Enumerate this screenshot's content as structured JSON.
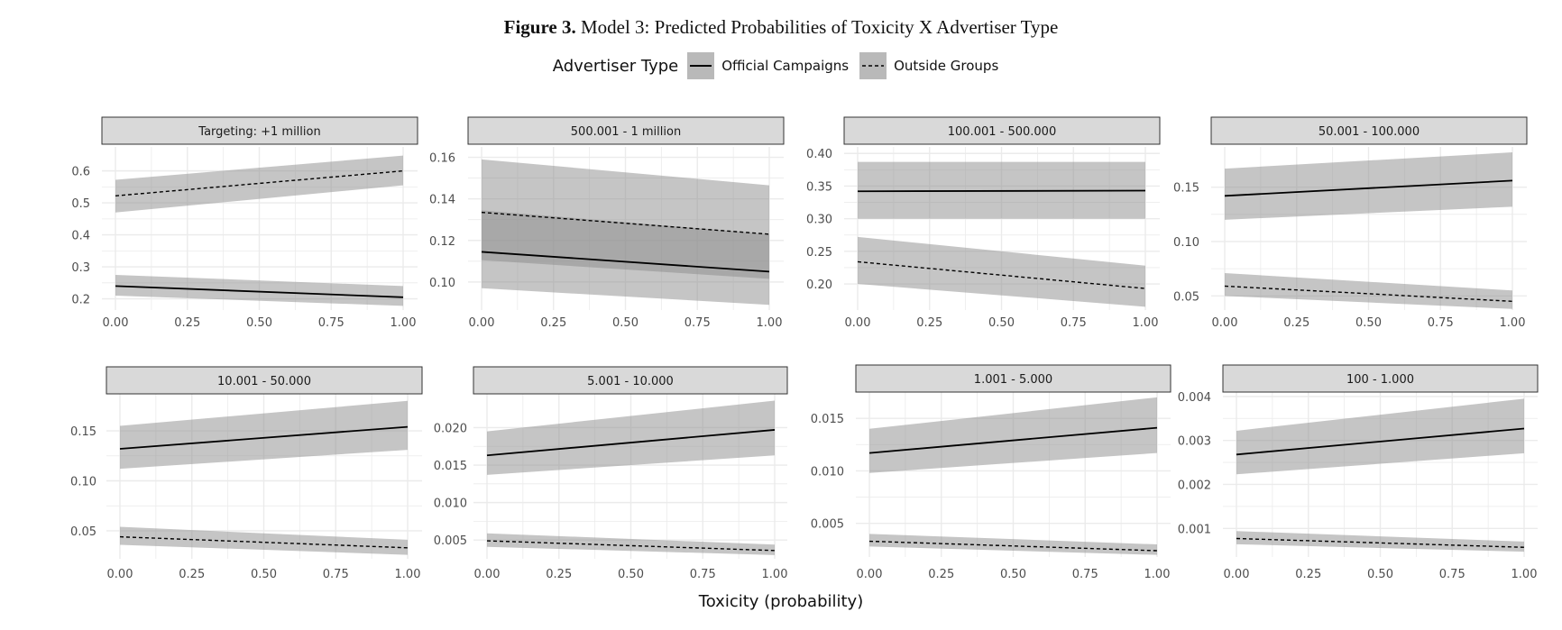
{
  "figure": {
    "label": "Figure 3.",
    "caption": "Model 3: Predicted Probabilities of Toxicity X Advertiser Type",
    "xlabel": "Toxicity (probability)"
  },
  "legend": {
    "title": "Advertiser Type",
    "entries": [
      "Official Campaigns",
      "Outside Groups"
    ]
  },
  "colors": {
    "ribbon": "#8c8c8c",
    "strip": "#d9d9d9",
    "grid": "#ebebeb",
    "line": "#000000"
  },
  "chart_data": [
    {
      "type": "line",
      "title": "Targeting: +1 million",
      "xlim": [
        0,
        1
      ],
      "yticks": [
        0.2,
        0.3,
        0.4,
        0.5,
        0.6
      ],
      "yticklabels": [
        "0.2",
        "0.3",
        "0.4",
        "0.5",
        "0.6"
      ],
      "ylim": [
        0.165,
        0.675
      ],
      "xticklabels": [
        "0.00",
        "0.25",
        "0.50",
        "0.75",
        "1.00"
      ],
      "series": [
        {
          "name": "Official Campaigns",
          "x": [
            0,
            1
          ],
          "y": [
            0.24,
            0.205
          ],
          "lo": [
            0.21,
            0.178
          ],
          "hi": [
            0.275,
            0.24
          ]
        },
        {
          "name": "Outside Groups",
          "x": [
            0,
            1
          ],
          "y": [
            0.522,
            0.6
          ],
          "lo": [
            0.47,
            0.555
          ],
          "hi": [
            0.572,
            0.648
          ]
        }
      ]
    },
    {
      "type": "line",
      "title": "500.001 - 1 million",
      "xlim": [
        0,
        1
      ],
      "yticks": [
        0.1,
        0.12,
        0.14,
        0.16
      ],
      "yticklabels": [
        "0.10",
        "0.12",
        "0.14",
        "0.16"
      ],
      "ylim": [
        0.0865,
        0.165
      ],
      "xticklabels": [
        "0.00",
        "0.25",
        "0.50",
        "0.75",
        "1.00"
      ],
      "series": [
        {
          "name": "Official Campaigns",
          "x": [
            0,
            1
          ],
          "y": [
            0.1145,
            0.105
          ],
          "lo": [
            0.097,
            0.089
          ],
          "hi": [
            0.1345,
            0.123
          ]
        },
        {
          "name": "Outside Groups",
          "x": [
            0,
            1
          ],
          "y": [
            0.1335,
            0.123
          ],
          "lo": [
            0.1105,
            0.1015
          ],
          "hi": [
            0.159,
            0.1465
          ]
        }
      ]
    },
    {
      "type": "line",
      "title": "100.001 - 500.000",
      "xlim": [
        0,
        1
      ],
      "yticks": [
        0.2,
        0.25,
        0.3,
        0.35,
        0.4
      ],
      "yticklabels": [
        "0.20",
        "0.25",
        "0.30",
        "0.35",
        "0.40"
      ],
      "ylim": [
        0.16,
        0.41
      ],
      "xticklabels": [
        "0.00",
        "0.25",
        "0.50",
        "0.75",
        "1.00"
      ],
      "series": [
        {
          "name": "Official Campaigns",
          "x": [
            0,
            1
          ],
          "y": [
            0.342,
            0.343
          ],
          "lo": [
            0.3,
            0.3
          ],
          "hi": [
            0.387,
            0.387
          ]
        },
        {
          "name": "Outside Groups",
          "x": [
            0,
            1
          ],
          "y": [
            0.234,
            0.193
          ],
          "lo": [
            0.2,
            0.165
          ],
          "hi": [
            0.272,
            0.228
          ]
        }
      ]
    },
    {
      "type": "line",
      "title": "50.001 - 100.000",
      "xlim": [
        0,
        1
      ],
      "yticks": [
        0.05,
        0.1,
        0.15
      ],
      "yticklabels": [
        "0.05",
        "0.10",
        "0.15"
      ],
      "ylim": [
        0.037,
        0.187
      ],
      "xticklabels": [
        "0.00",
        "0.25",
        "0.50",
        "0.75",
        "1.00"
      ],
      "series": [
        {
          "name": "Official Campaigns",
          "x": [
            0,
            1
          ],
          "y": [
            0.142,
            0.156
          ],
          "lo": [
            0.12,
            0.132
          ],
          "hi": [
            0.167,
            0.182
          ]
        },
        {
          "name": "Outside Groups",
          "x": [
            0,
            1
          ],
          "y": [
            0.059,
            0.045
          ],
          "lo": [
            0.05,
            0.038
          ],
          "hi": [
            0.071,
            0.055
          ]
        }
      ]
    },
    {
      "type": "line",
      "title": "10.001 - 50.000",
      "xlim": [
        0,
        1
      ],
      "yticks": [
        0.05,
        0.1,
        0.15
      ],
      "yticklabels": [
        "0.05",
        "0.10",
        "0.15"
      ],
      "ylim": [
        0.022,
        0.187
      ],
      "xticklabels": [
        "0.00",
        "0.25",
        "0.50",
        "0.75",
        "1.00"
      ],
      "series": [
        {
          "name": "Official Campaigns",
          "x": [
            0,
            1
          ],
          "y": [
            0.132,
            0.154
          ],
          "lo": [
            0.112,
            0.131
          ],
          "hi": [
            0.155,
            0.18
          ]
        },
        {
          "name": "Outside Groups",
          "x": [
            0,
            1
          ],
          "y": [
            0.044,
            0.033
          ],
          "lo": [
            0.036,
            0.026
          ],
          "hi": [
            0.054,
            0.041
          ]
        }
      ]
    },
    {
      "type": "line",
      "title": "5.001 - 10.000",
      "xlim": [
        0,
        1
      ],
      "yticks": [
        0.005,
        0.01,
        0.015,
        0.02
      ],
      "yticklabels": [
        "0.005",
        "0.010",
        "0.015",
        "0.020"
      ],
      "ylim": [
        0.0025,
        0.0245
      ],
      "xticklabels": [
        "0.00",
        "0.25",
        "0.50",
        "0.75",
        "1.00"
      ],
      "series": [
        {
          "name": "Official Campaigns",
          "x": [
            0,
            1
          ],
          "y": [
            0.0163,
            0.0197
          ],
          "lo": [
            0.0137,
            0.0163
          ],
          "hi": [
            0.0195,
            0.0236
          ]
        },
        {
          "name": "Outside Groups",
          "x": [
            0,
            1
          ],
          "y": [
            0.0049,
            0.0036
          ],
          "lo": [
            0.0041,
            0.003
          ],
          "hi": [
            0.0059,
            0.0044
          ]
        }
      ]
    },
    {
      "type": "line",
      "title": "1.001 - 5.000",
      "xlim": [
        0,
        1
      ],
      "yticks": [
        0.005,
        0.01,
        0.015
      ],
      "yticklabels": [
        "0.005",
        "0.010",
        "0.015"
      ],
      "ylim": [
        0.0018,
        0.0175
      ],
      "xticklabels": [
        "0.00",
        "0.25",
        "0.50",
        "0.75",
        "1.00"
      ],
      "series": [
        {
          "name": "Official Campaigns",
          "x": [
            0,
            1
          ],
          "y": [
            0.0117,
            0.0141
          ],
          "lo": [
            0.0098,
            0.0117
          ],
          "hi": [
            0.014,
            0.017
          ]
        },
        {
          "name": "Outside Groups",
          "x": [
            0,
            1
          ],
          "y": [
            0.0033,
            0.0024
          ],
          "lo": [
            0.0028,
            0.002
          ],
          "hi": [
            0.004,
            0.003
          ]
        }
      ]
    },
    {
      "type": "line",
      "title": "100 - 1.000",
      "xlim": [
        0,
        1
      ],
      "yticks": [
        0.001,
        0.002,
        0.003,
        0.004
      ],
      "yticklabels": [
        "0.001",
        "0.002",
        "0.003",
        "0.004"
      ],
      "ylim": [
        0.00035,
        0.0041
      ],
      "xticklabels": [
        "0.00",
        "0.25",
        "0.50",
        "0.75",
        "1.00"
      ],
      "series": [
        {
          "name": "Official Campaigns",
          "x": [
            0,
            1
          ],
          "y": [
            0.00268,
            0.00327
          ],
          "lo": [
            0.00223,
            0.00271
          ],
          "hi": [
            0.00322,
            0.00395
          ]
        },
        {
          "name": "Outside Groups",
          "x": [
            0,
            1
          ],
          "y": [
            0.00077,
            0.00057
          ],
          "lo": [
            0.00064,
            0.00047
          ],
          "hi": [
            0.00094,
            0.0007
          ]
        }
      ]
    }
  ]
}
